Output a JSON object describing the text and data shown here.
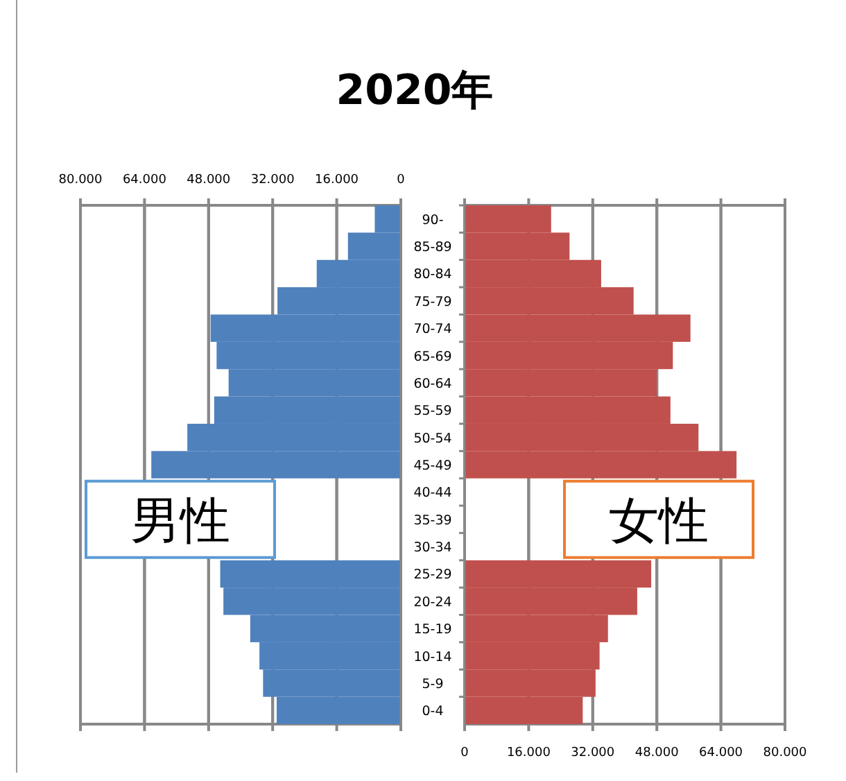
{
  "chart_data": [
    {
      "type": "bar",
      "orientation": "horizontal",
      "title": "2020年",
      "categories": [
        null,
        null,
        null,
        null,
        null,
        null,
        null,
        null,
        null,
        null,
        null,
        null,
        null,
        null,
        null,
        null,
        null,
        null,
        null
      ],
      "series": [
        {
          "name": "男性",
          "color": "#4f81bd",
          "values": [
            6500,
            13200,
            21000,
            30800,
            47500,
            46000,
            43000,
            46600,
            53300,
            62300,
            null,
            null,
            null,
            45100,
            44300,
            37600,
            35300,
            34400,
            31000
          ]
        }
      ],
      "xlim": [
        80000,
        0
      ],
      "xticks": [
        {
          "value": 80000,
          "label": "80.000"
        },
        {
          "value": 64000,
          "label": "64.000"
        },
        {
          "value": 48000,
          "label": "48.000"
        },
        {
          "value": 32000,
          "label": "32.000"
        },
        {
          "value": 16000,
          "label": "16.000"
        },
        0
      ],
      "grid": "x"
    },
    {
      "type": "bar",
      "orientation": "horizontal",
      "categories": [
        "90-",
        "85-89",
        "80-84",
        "75-79",
        "70-74",
        "65-69",
        "60-64",
        "55-59",
        "50-54",
        "45-49",
        "40-44",
        "35-39",
        "30-34",
        "25-29",
        "20-24",
        "15-19",
        "10-14",
        "5-9",
        "0-4"
      ],
      "series": [
        {
          "name": "女性",
          "color": "#c0504d",
          "values": [
            21600,
            26200,
            34100,
            42200,
            56400,
            52000,
            48000,
            51400,
            58400,
            67900,
            null,
            null,
            null,
            46600,
            43100,
            35800,
            33700,
            32700,
            29500
          ]
        }
      ],
      "xlim": [
        0,
        80000
      ],
      "xticks": [
        0,
        {
          "value": 16000,
          "label": "16.000"
        },
        {
          "value": 32000,
          "label": "32.000"
        },
        {
          "value": 48000,
          "label": "48.000"
        },
        {
          "value": 64000,
          "label": "64.000"
        },
        {
          "value": 80000,
          "label": "80.000"
        }
      ],
      "grid": "x"
    }
  ]
}
